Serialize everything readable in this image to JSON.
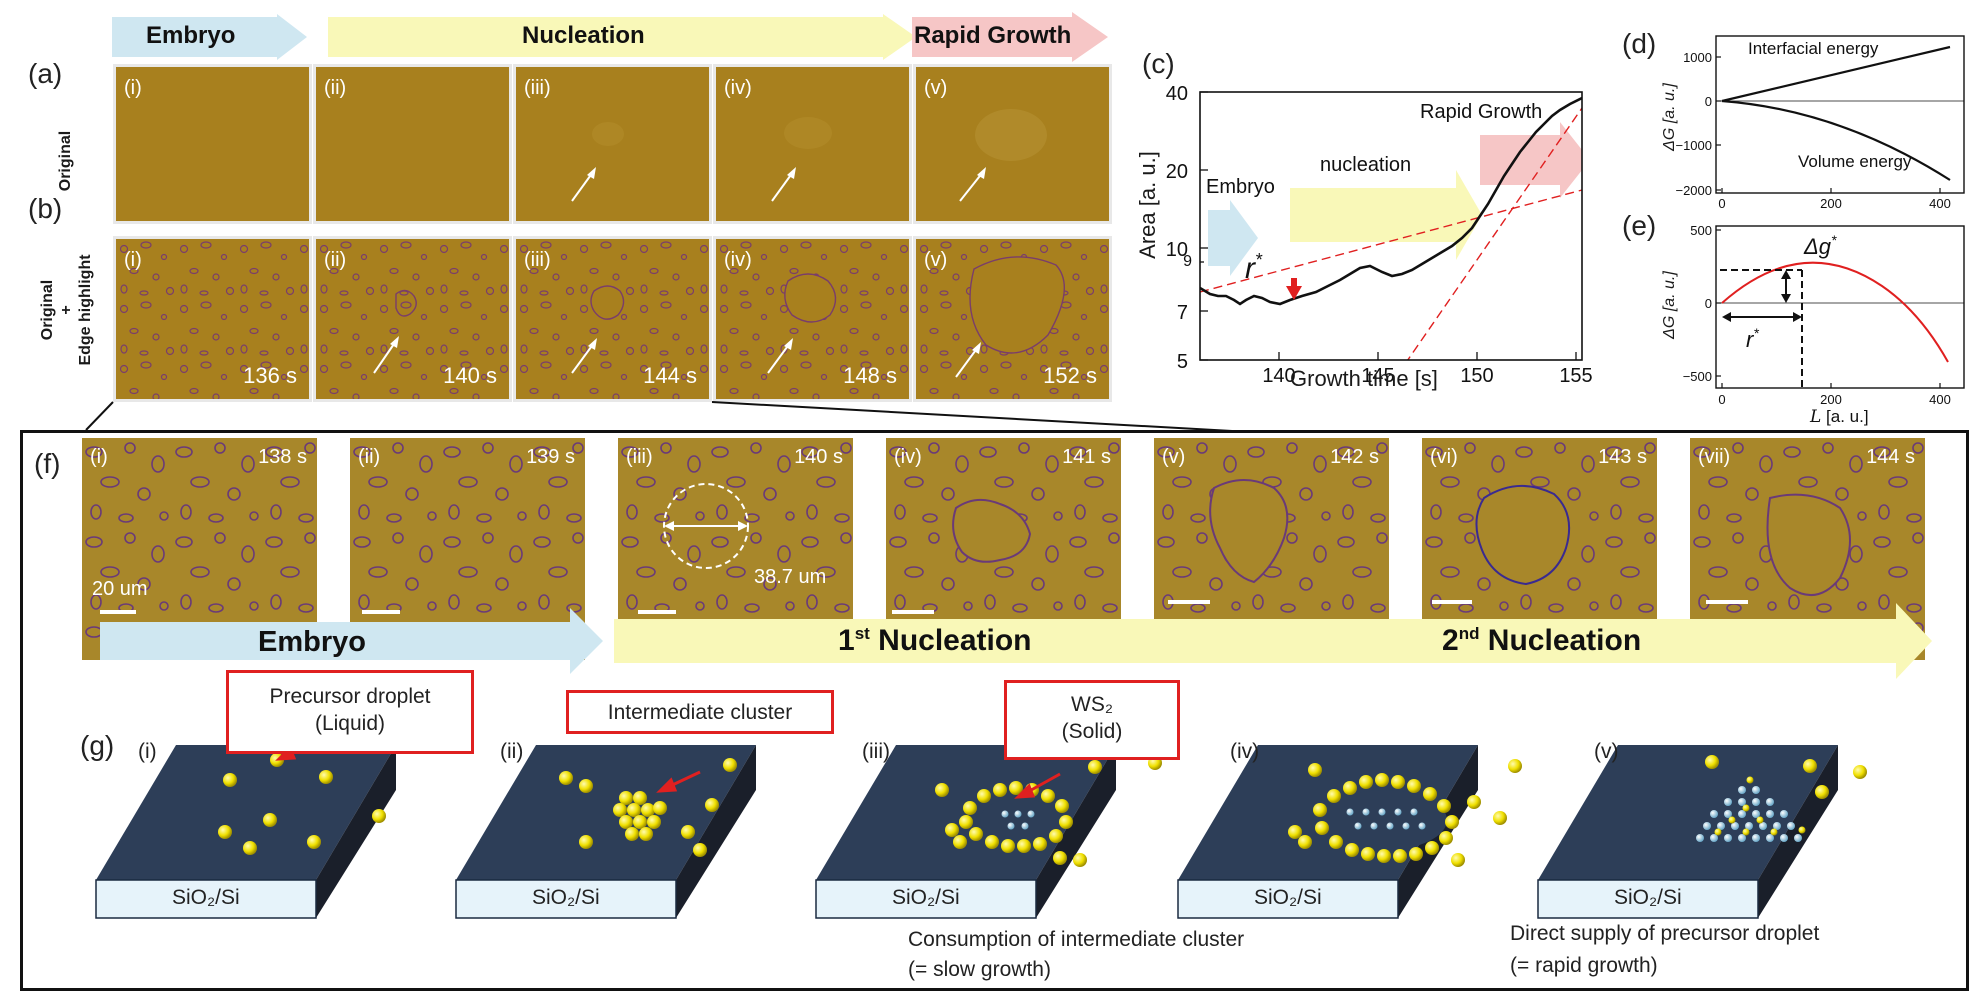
{
  "stages": {
    "embryo": "Embryo",
    "nucleation": "Nucleation",
    "rapid": "Rapid Growth"
  },
  "panel_labels": {
    "a": "(a)",
    "b": "(b)",
    "c": "(c)",
    "d": "(d)",
    "e": "(e)",
    "f": "(f)",
    "g": "(g)"
  },
  "row_labels": {
    "original": "Original",
    "edge_top": "Original",
    "edge_plus": "+",
    "edge_bottom": "Edge highlight"
  },
  "row_a": [
    {
      "sub": "(i)"
    },
    {
      "sub": "(ii)"
    },
    {
      "sub": "(iii)"
    },
    {
      "sub": "(iv)"
    },
    {
      "sub": "(v)"
    }
  ],
  "row_b": [
    {
      "sub": "(i)",
      "time": "136 s"
    },
    {
      "sub": "(ii)",
      "time": "140 s"
    },
    {
      "sub": "(iii)",
      "time": "144 s"
    },
    {
      "sub": "(iv)",
      "time": "148 s"
    },
    {
      "sub": "(v)",
      "time": "152 s"
    }
  ],
  "panel_c": {
    "ylabel": "Area [a. u.]",
    "xlabel": "Growth time [s]",
    "yticks": [
      "5",
      "7",
      "10",
      "20",
      "40"
    ],
    "ytick_extra": "9",
    "xticks": [
      "140",
      "145",
      "150",
      "155"
    ],
    "labels": {
      "embryo": "Embryo",
      "nucleation": "nucleation",
      "rapid": "Rapid Growth",
      "rstar": "r*"
    }
  },
  "panel_d": {
    "ylabel": "ΔG [a. u.]",
    "yticks": [
      "1000",
      "0",
      "−1000",
      "−2000"
    ],
    "xticks": [
      "0",
      "200",
      "400"
    ],
    "top_label": "Interfacial energy",
    "bottom_label": "Volume energy"
  },
  "panel_e": {
    "ylabel": "ΔG [a. u.]",
    "xlabel": "L [a. u.]",
    "yticks": [
      "500",
      "0",
      "−500"
    ],
    "xticks": [
      "0",
      "200",
      "400"
    ],
    "dg_label": "Δg*",
    "r_label": "r*"
  },
  "row_f": [
    {
      "sub": "(i)",
      "time": "138 s"
    },
    {
      "sub": "(ii)",
      "time": "139 s"
    },
    {
      "sub": "(iii)",
      "time": "140 s"
    },
    {
      "sub": "(iv)",
      "time": "141 s"
    },
    {
      "sub": "(v)",
      "time": "142 s"
    },
    {
      "sub": "(vi)",
      "time": "143 s"
    },
    {
      "sub": "(vii)",
      "time": "144 s"
    }
  ],
  "f_scale": "20 um",
  "f_diameter": "38.7 um",
  "f_arrows": {
    "embryo": "Embryo",
    "n1_pre": "1",
    "n1_sup": "st",
    "n1_post": " Nucleation",
    "n2_pre": "2",
    "n2_sup": "nd",
    "n2_post": " Nucleation"
  },
  "row_g": [
    {
      "sub": "(i)",
      "substrate": "SiO₂/Si"
    },
    {
      "sub": "(ii)",
      "substrate": "SiO₂/Si"
    },
    {
      "sub": "(iii)",
      "substrate": "SiO₂/Si"
    },
    {
      "sub": "(iv)",
      "substrate": "SiO₂/Si"
    },
    {
      "sub": "(v)",
      "substrate": "SiO₂/Si"
    }
  ],
  "g_boxes": {
    "droplet_line1": "Precursor droplet",
    "droplet_line2": "(Liquid)",
    "cluster": "Intermediate cluster",
    "ws2_line1": "WS₂",
    "ws2_line2": "(Solid)"
  },
  "g_notes": {
    "slow_line1": "Consumption of intermediate cluster",
    "slow_line2": "(= slow growth)",
    "rapid_line1": "Direct supply of precursor droplet",
    "rapid_line2": "(= rapid growth)"
  },
  "colors": {
    "embryo": "#cfe7f1",
    "nucleation": "#f9f8b8",
    "rapid": "#f6c6c6",
    "film": "#a8801e",
    "curve_red": "#e02020"
  }
}
